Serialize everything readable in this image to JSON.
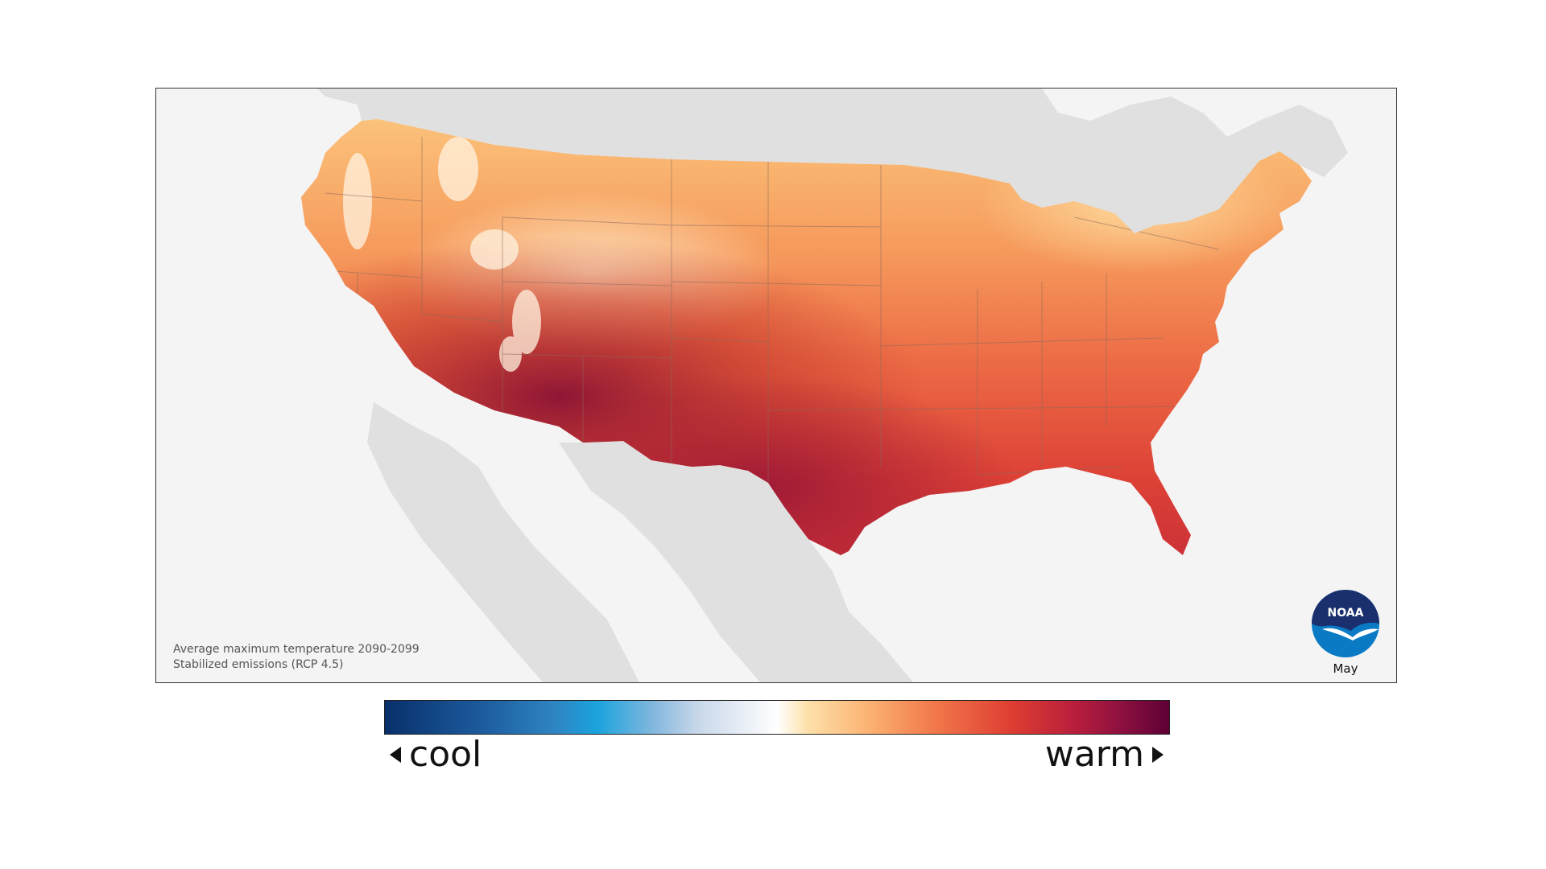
{
  "map": {
    "caption_line1": "Average maximum temperature 2090-2099",
    "caption_line2": "Stabilized emissions (RCP 4.5)",
    "month": "May",
    "logo_text": "NOAA",
    "colors": {
      "background": "#f4f4f4",
      "land_neighbors": "#e0e0e0",
      "state_border": "#8a6a5a"
    }
  },
  "legend": {
    "low_label": "cool",
    "high_label": "warm",
    "low_color": "#08306b",
    "mid_color": "#ffffff",
    "high_color": "#5e0035"
  }
}
